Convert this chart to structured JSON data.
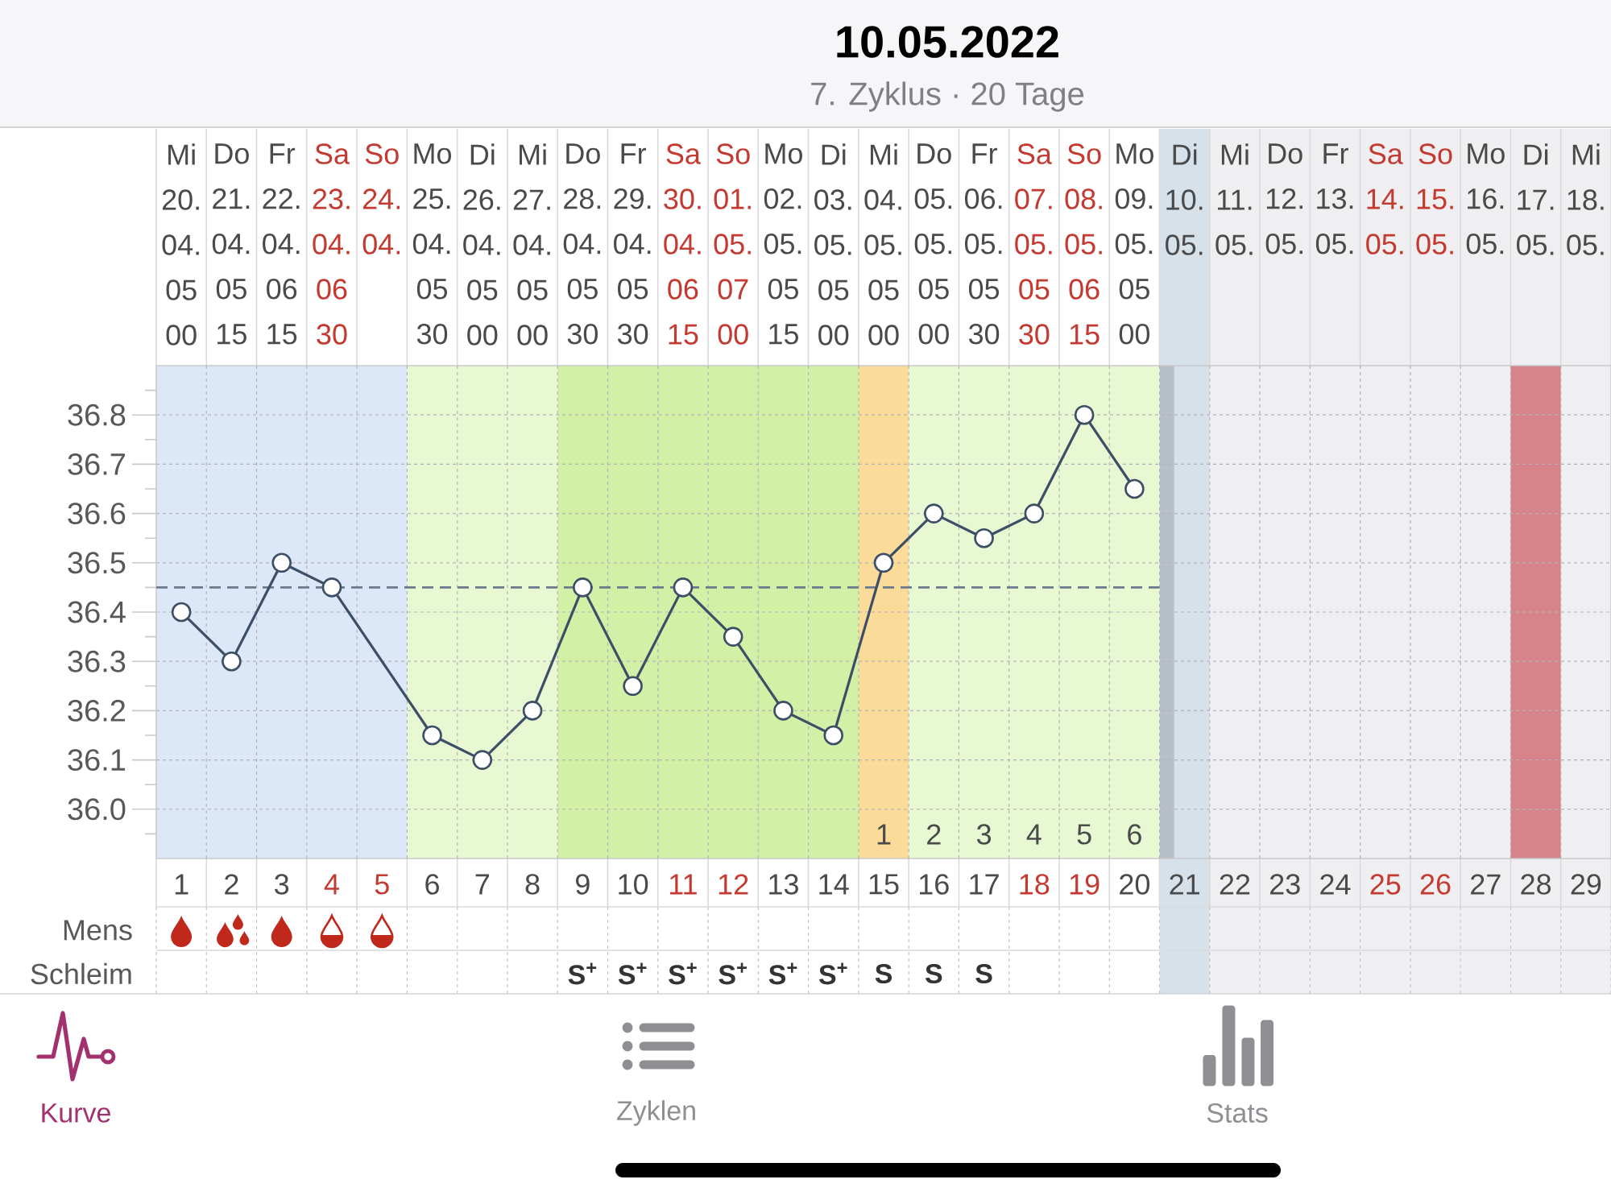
{
  "chart_data": [
    {
      "type": "line",
      "title": "10.05.2022",
      "subtitle": "7. Zyklus · 20 Tage",
      "x": [
        "2022-04-20",
        "2022-04-21",
        "2022-04-22",
        "2022-04-23",
        "2022-04-24",
        "2022-04-25",
        "2022-04-26",
        "2022-04-27",
        "2022-04-28",
        "2022-04-29",
        "2022-04-30",
        "2022-05-01",
        "2022-05-02",
        "2022-05-03",
        "2022-05-04",
        "2022-05-05",
        "2022-05-06",
        "2022-05-07",
        "2022-05-08",
        "2022-05-09"
      ],
      "values": [
        36.4,
        36.3,
        36.5,
        36.45,
        null,
        36.15,
        36.1,
        36.2,
        36.45,
        36.25,
        36.45,
        36.35,
        36.2,
        36.15,
        36.5,
        36.6,
        36.55,
        36.6,
        36.8,
        36.65
      ],
      "color": "#3d4f66",
      "marker": "circle",
      "line_style": "solid",
      "grid": true,
      "xlim": [
        "2022-04-19T12:00",
        "2022-05-18T12:00"
      ],
      "xticks": [
        {
          "value": "2022-04-20",
          "label": "1"
        },
        {
          "value": "2022-04-21",
          "label": "2"
        },
        {
          "value": "2022-04-22",
          "label": "3"
        },
        {
          "value": "2022-04-23",
          "label": "4"
        },
        {
          "value": "2022-04-24",
          "label": "5"
        },
        {
          "value": "2022-04-25",
          "label": "6"
        },
        {
          "value": "2022-04-26",
          "label": "7"
        },
        {
          "value": "2022-04-27",
          "label": "8"
        },
        {
          "value": "2022-04-28",
          "label": "9"
        },
        {
          "value": "2022-04-29",
          "label": "10"
        },
        {
          "value": "2022-04-30",
          "label": "11"
        },
        {
          "value": "2022-05-01",
          "label": "12"
        },
        {
          "value": "2022-05-02",
          "label": "13"
        },
        {
          "value": "2022-05-03",
          "label": "14"
        },
        {
          "value": "2022-05-04",
          "label": "15"
        },
        {
          "value": "2022-05-05",
          "label": "16"
        },
        {
          "value": "2022-05-06",
          "label": "17"
        },
        {
          "value": "2022-05-07",
          "label": "18"
        },
        {
          "value": "2022-05-08",
          "label": "19"
        },
        {
          "value": "2022-05-09",
          "label": "20"
        },
        {
          "value": "2022-05-10",
          "label": "21"
        },
        {
          "value": "2022-05-11",
          "label": "22"
        },
        {
          "value": "2022-05-12",
          "label": "23"
        },
        {
          "value": "2022-05-13",
          "label": "24"
        },
        {
          "value": "2022-05-14",
          "label": "25"
        },
        {
          "value": "2022-05-15",
          "label": "26"
        },
        {
          "value": "2022-05-16",
          "label": "27"
        },
        {
          "value": "2022-05-17",
          "label": "28"
        },
        {
          "value": "2022-05-18",
          "label": "29"
        }
      ],
      "x2lim": [
        "2022-04-19T12:00",
        "2022-05-18T12:00"
      ],
      "x2ticks": [
        {
          "value": "2022-04-20",
          "label": "Mi 20. 04. 05 00"
        },
        {
          "value": "2022-04-21",
          "label": "Do 21. 04. 05 15"
        },
        {
          "value": "2022-04-22",
          "label": "Fr 22. 04. 06 15"
        },
        {
          "value": "2022-04-23",
          "label": "Sa 23. 04. 06 30"
        },
        {
          "value": "2022-04-24",
          "label": "So 24. 04."
        },
        {
          "value": "2022-04-25",
          "label": "Mo 25. 04. 05 30"
        },
        {
          "value": "2022-04-26",
          "label": "Di 26. 04. 05 00"
        },
        {
          "value": "2022-04-27",
          "label": "Mi 27. 04. 05 00"
        },
        {
          "value": "2022-04-28",
          "label": "Do 28. 04. 05 30"
        },
        {
          "value": "2022-04-29",
          "label": "Fr 29. 04. 05 30"
        },
        {
          "value": "2022-04-30",
          "label": "Sa 30. 04. 06 15"
        },
        {
          "value": "2022-05-01",
          "label": "So 01. 05. 07 00"
        },
        {
          "value": "2022-05-02",
          "label": "Mo 02. 05. 05 15"
        },
        {
          "value": "2022-05-03",
          "label": "Di 03. 05. 05 00"
        },
        {
          "value": "2022-05-04",
          "label": "Mi 04. 05. 05 00"
        },
        {
          "value": "2022-05-05",
          "label": "Do 05. 05. 05 00"
        },
        {
          "value": "2022-05-06",
          "label": "Fr 06. 05. 05 30"
        },
        {
          "value": "2022-05-07",
          "label": "Sa 07. 05. 05 30"
        },
        {
          "value": "2022-05-08",
          "label": "So 08. 05. 06 15"
        },
        {
          "value": "2022-05-09",
          "label": "Mo 09. 05. 05 00"
        },
        {
          "value": "2022-05-10",
          "label": "Di 10. 05."
        },
        {
          "value": "2022-05-11",
          "label": "Mi 11. 05."
        },
        {
          "value": "2022-05-12",
          "label": "Do 12. 05."
        },
        {
          "value": "2022-05-13",
          "label": "Fr 13. 05."
        },
        {
          "value": "2022-05-14",
          "label": "Sa 14. 05."
        },
        {
          "value": "2022-05-15",
          "label": "So 15. 05."
        },
        {
          "value": "2022-05-16",
          "label": "Mo 16. 05."
        },
        {
          "value": "2022-05-17",
          "label": "Di 17. 05."
        },
        {
          "value": "2022-05-18",
          "label": "Mi 18. 05."
        }
      ],
      "ylim": [
        35.9,
        36.9
      ],
      "yticks": [
        {
          "value": 35.95,
          "label": null
        },
        {
          "value": 36,
          "label": "36.0"
        },
        {
          "value": 36.05,
          "label": null
        },
        36.1,
        {
          "value": 36.15,
          "label": null
        },
        36.2,
        {
          "value": 36.25,
          "label": null
        },
        36.3,
        {
          "value": 36.35,
          "label": null
        },
        36.4,
        {
          "value": 36.45,
          "label": null
        },
        36.5,
        {
          "value": 36.55,
          "label": null
        },
        36.6,
        {
          "value": 36.65,
          "label": null
        },
        36.7,
        {
          "value": 36.75,
          "label": null
        },
        36.8,
        {
          "value": 36.85,
          "label": null
        }
      ],
      "ref_lines": [
        {
          "axis": "y",
          "value": 36.45,
          "color": "#6b7a8c",
          "line_style": "dashed"
        }
      ],
      "bands": [
        {
          "axis": "x",
          "from": "2022-04-19T12:00",
          "to": "2022-04-24T12:00",
          "color": "#dce8f8"
        },
        {
          "axis": "x",
          "from": "2022-04-24T12:00",
          "to": "2022-04-27T12:00",
          "color": "#e8f8d2"
        },
        {
          "axis": "x",
          "from": "2022-04-27T12:00",
          "to": "2022-05-03T12:00",
          "color": "#d2f0a6"
        },
        {
          "axis": "x",
          "from": "2022-05-03T12:00",
          "to": "2022-05-04T12:00",
          "color": "#fadb9a"
        },
        {
          "axis": "x",
          "from": "2022-05-04T12:00",
          "to": "2022-05-09T12:00",
          "color": "#e8f8d2"
        },
        {
          "axis": "x",
          "from": "2022-05-09T12:00",
          "to": "2022-05-10T12:00",
          "color": "#d6e1e9"
        },
        {
          "axis": "x",
          "from": "2022-05-10T12:00",
          "to": "2022-05-18T12:00",
          "color": "#efeff1"
        },
        {
          "axis": "x",
          "from": "2022-05-16T12:00",
          "to": "2022-05-17T12:00",
          "color": "#d7838a"
        },
        {
          "axis": "x",
          "from": "2022-05-09T12:00",
          "to": "2022-05-09T19:00",
          "color": "#b7bfc7"
        }
      ],
      "annotations": [
        "1",
        "2",
        "3",
        "4",
        "5",
        "6"
      ]
    },
    {
      "type": "other",
      "annotations": [
        "Mens",
        "Schleim"
      ],
      "categories": [
        null,
        null,
        null,
        null,
        null,
        null,
        null,
        null,
        "S$^{+}$",
        "S$^{+}$",
        "S$^{+}$",
        "S$^{+}$",
        "S$^{+}$",
        "S$^{+}$",
        "S",
        "S",
        "S",
        null,
        null,
        null,
        null,
        null,
        null,
        null,
        null,
        null,
        null,
        null,
        null
      ]
    },
    {
      "type": "other",
      "annotations": [
        "Kurve",
        "Zyklen",
        "Stats"
      ],
      "colors": [
        "#a3316f",
        "#8e8e93",
        "#8e8e93"
      ]
    }
  ]
}
